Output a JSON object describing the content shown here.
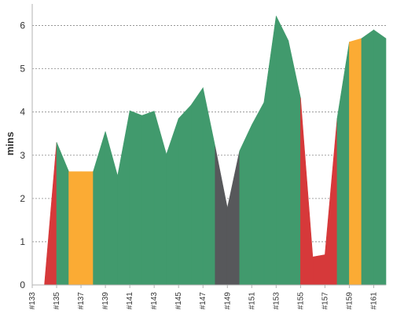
{
  "chart_data": {
    "type": "area",
    "ylabel": "mins",
    "ylim": [
      0,
      6.5
    ],
    "yticks": [
      0,
      1,
      2,
      3,
      4,
      5,
      6
    ],
    "grid": true,
    "x": [
      "#133",
      "#134",
      "#135",
      "#136",
      "#137",
      "#138",
      "#139",
      "#140",
      "#141",
      "#142",
      "#143",
      "#144",
      "#145",
      "#146",
      "#147",
      "#148",
      "#149",
      "#150",
      "#151",
      "#152",
      "#153",
      "#154",
      "#155",
      "#156",
      "#157",
      "#158",
      "#159",
      "#160",
      "#161",
      "#162"
    ],
    "xtick_labels": [
      "#133",
      "#135",
      "#137",
      "#139",
      "#141",
      "#143",
      "#145",
      "#147",
      "#149",
      "#151",
      "#153",
      "#155",
      "#157",
      "#159",
      "#161"
    ],
    "values": [
      0,
      0,
      3.3,
      2.62,
      2.62,
      2.62,
      3.55,
      2.52,
      4.03,
      3.92,
      4.02,
      3.02,
      3.85,
      4.15,
      4.56,
      3.2,
      1.78,
      3.1,
      3.7,
      4.22,
      6.22,
      5.65,
      4.33,
      0.65,
      0.7,
      3.85,
      5.62,
      5.7,
      5.9,
      5.7
    ],
    "status": [
      "red",
      "red",
      "green",
      "orange",
      "orange",
      "green",
      "green",
      "green",
      "green",
      "green",
      "green",
      "green",
      "green",
      "green",
      "green",
      "gray",
      "gray",
      "green",
      "green",
      "green",
      "green",
      "green",
      "red",
      "red",
      "red",
      "green",
      "orange",
      "green",
      "green",
      "green"
    ],
    "colors": {
      "green": "#419a6d",
      "red": "#d6393a",
      "orange": "#fbab34",
      "gray": "#57585b",
      "grid": "#888888",
      "axis": "#b3b3b3"
    }
  }
}
